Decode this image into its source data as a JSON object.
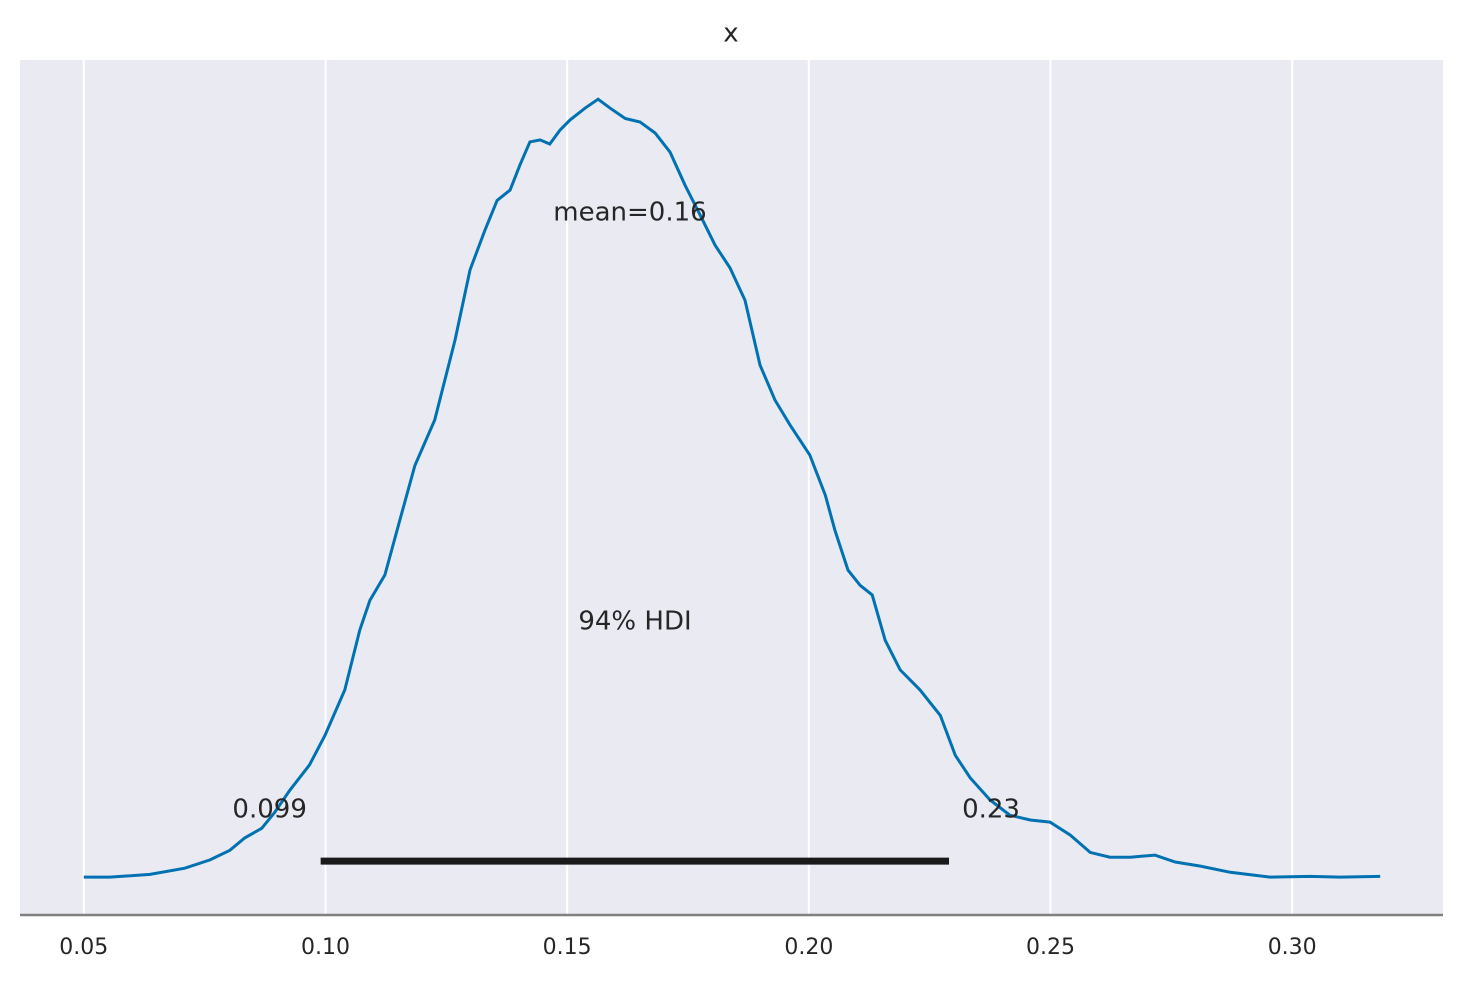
{
  "chart_data": {
    "type": "kde",
    "title": "x",
    "x": [
      0.05,
      0.0554,
      0.0637,
      0.0709,
      0.0761,
      0.0802,
      0.0833,
      0.0868,
      0.0895,
      0.0926,
      0.0967,
      0.0999,
      0.104,
      0.1071,
      0.1092,
      0.1123,
      0.1154,
      0.1185,
      0.1226,
      0.1268,
      0.1299,
      0.133,
      0.1355,
      0.1382,
      0.1402,
      0.1423,
      0.1444,
      0.1464,
      0.1485,
      0.1506,
      0.1537,
      0.1564,
      0.1589,
      0.162,
      0.1651,
      0.1682,
      0.1713,
      0.1744,
      0.1775,
      0.1806,
      0.1837,
      0.1868,
      0.1899,
      0.193,
      0.1961,
      0.2002,
      0.2034,
      0.2054,
      0.2081,
      0.2106,
      0.2131,
      0.2158,
      0.2189,
      0.223,
      0.2272,
      0.2303,
      0.2334,
      0.2375,
      0.2416,
      0.2458,
      0.2499,
      0.2541,
      0.2582,
      0.2623,
      0.2665,
      0.2716,
      0.2758,
      0.281,
      0.2872,
      0.2954,
      0.3037,
      0.3099,
      0.3182
    ],
    "values": [
      0.0,
      0.0,
      0.04,
      0.13,
      0.25,
      0.39,
      0.57,
      0.71,
      0.94,
      1.26,
      1.63,
      2.06,
      2.72,
      3.59,
      4.02,
      4.39,
      5.19,
      5.98,
      6.64,
      7.8,
      8.82,
      9.4,
      9.83,
      9.98,
      10.34,
      10.68,
      10.71,
      10.65,
      10.85,
      11.0,
      11.17,
      11.3,
      11.17,
      11.02,
      10.97,
      10.81,
      10.53,
      10.05,
      9.62,
      9.18,
      8.85,
      8.38,
      7.44,
      6.93,
      6.57,
      6.13,
      5.55,
      5.04,
      4.46,
      4.24,
      4.1,
      3.44,
      3.01,
      2.72,
      2.35,
      1.77,
      1.44,
      1.12,
      0.9,
      0.83,
      0.8,
      0.61,
      0.36,
      0.29,
      0.29,
      0.32,
      0.22,
      0.16,
      0.07,
      0.0,
      0.01,
      0.0,
      0.01
    ],
    "color": "#0072b2",
    "mean_label": "mean=0.16",
    "hdi_label": "94% HDI",
    "hdi": [
      0.099,
      0.229
    ],
    "hdi_value_labels": [
      "0.099",
      "0.23"
    ],
    "xlim": [
      0.0368,
      0.3312
    ],
    "ylim": [
      -0.55,
      11.87
    ],
    "xticks": [
      0.05,
      {
        "value": 0.1,
        "label": "0.10"
      },
      0.15,
      {
        "value": 0.2,
        "label": "0.20"
      },
      0.25,
      {
        "value": 0.3,
        "label": "0.30"
      }
    ],
    "grid": true
  }
}
